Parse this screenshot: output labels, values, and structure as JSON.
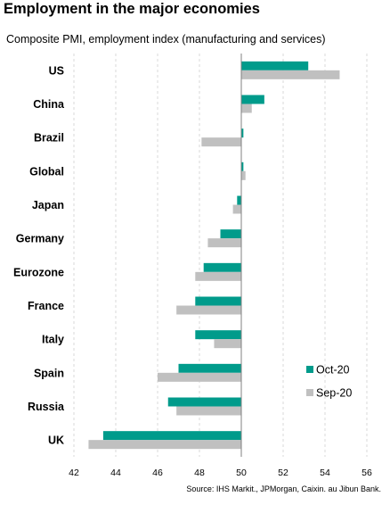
{
  "header": {
    "title": "Employment in the major economies",
    "subtitle": "Composite PMI, employment index (manufacturing and services)"
  },
  "footer": {
    "source": "Source: IHS Markit., JPMorgan, Caixin. au Jibun Bank."
  },
  "colors": {
    "oct": "#009b8b",
    "sep": "#c0c0c0",
    "grid": "#d9d9d9",
    "axis": "#808080"
  },
  "chart_data": {
    "type": "bar",
    "orientation": "horizontal",
    "title": "Employment in the major economies",
    "subtitle": "Composite PMI, employment index (manufacturing and services)",
    "categories": [
      "US",
      "China",
      "Brazil",
      "Global",
      "Japan",
      "Germany",
      "Eurozone",
      "France",
      "Italy",
      "Spain",
      "Russia",
      "UK"
    ],
    "baseline": 50,
    "xlim": [
      42,
      56
    ],
    "xticks": [
      "42",
      "44",
      "46",
      "48",
      "50",
      "52",
      "54",
      "56"
    ],
    "grid": true,
    "legend_position": "lower-right",
    "series": [
      {
        "name": "Oct-20",
        "color": "#009b8b",
        "values": [
          53.2,
          51.1,
          50.1,
          50.1,
          49.8,
          49.0,
          48.2,
          47.8,
          47.8,
          47.0,
          46.5,
          43.4
        ]
      },
      {
        "name": "Sep-20",
        "color": "#c0c0c0",
        "values": [
          54.7,
          50.5,
          48.1,
          50.2,
          49.6,
          48.4,
          47.8,
          46.9,
          48.7,
          46.0,
          46.9,
          42.7
        ]
      }
    ]
  }
}
